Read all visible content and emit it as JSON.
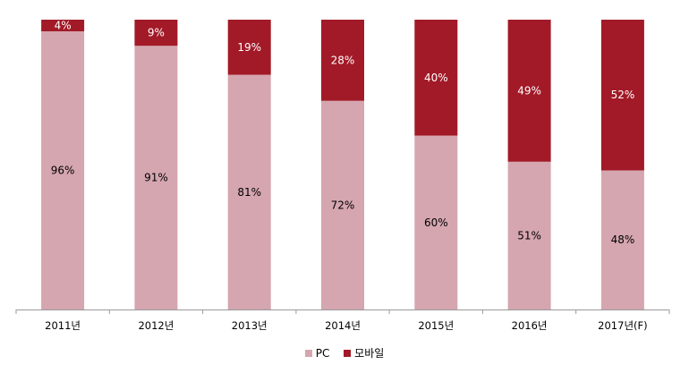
{
  "chart_data": {
    "type": "bar",
    "stacked": true,
    "categories": [
      "2011년",
      "2012년",
      "2013년",
      "2014년",
      "2015년",
      "2016년",
      "2017년(F)"
    ],
    "series": [
      {
        "name": "PC",
        "values": [
          96,
          91,
          81,
          72,
          60,
          51,
          48
        ],
        "labels": [
          "96%",
          "91%",
          "81%",
          "72%",
          "60%",
          "51%",
          "48%"
        ],
        "color": "#d5a6b0"
      },
      {
        "name": "모바일",
        "values": [
          4,
          9,
          19,
          28,
          40,
          49,
          52
        ],
        "labels": [
          "4%",
          "9%",
          "19%",
          "28%",
          "40%",
          "49%",
          "52%"
        ],
        "color": "#a21a27"
      }
    ],
    "ylim": [
      0,
      100
    ],
    "grid": false,
    "legend_position": "bottom"
  }
}
